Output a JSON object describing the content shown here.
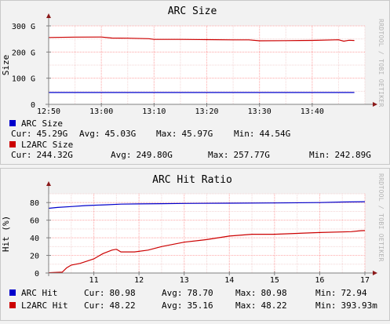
{
  "watermark": "RRDTOOL / TOBI OETIKER",
  "colors": {
    "background": "#f2f2f2",
    "canvas": "#ffffff",
    "grid": "#ffaaaa",
    "minor_grid": "#f3d6d6",
    "axis": "#808080",
    "arrow": "#8b1a1a",
    "blue": "#0000cc",
    "red": "#cc0000"
  },
  "chart_data": [
    {
      "type": "line",
      "title": "ARC Size",
      "ylabel": "Size",
      "xlabel": "",
      "ylim": [
        0,
        300
      ],
      "xlim": [
        "12:50",
        "13:50"
      ],
      "yticks": [
        {
          "v": 0,
          "label": "0"
        },
        {
          "v": 100,
          "label": "100 G"
        },
        {
          "v": 200,
          "label": "200 G"
        },
        {
          "v": 300,
          "label": "300 G"
        }
      ],
      "xticks": [
        {
          "v": "12:50",
          "label": "12:50"
        },
        {
          "v": "13:00",
          "label": "13:00"
        },
        {
          "v": "13:10",
          "label": "13:10"
        },
        {
          "v": "13:20",
          "label": "13:20"
        },
        {
          "v": "13:30",
          "label": "13:30"
        },
        {
          "v": "13:40",
          "label": "13:40"
        }
      ],
      "grid": true,
      "series": [
        {
          "name": "ARC Size",
          "color": "#0000cc",
          "x": [
            "12:50",
            "13:48"
          ],
          "values": [
            45.29,
            45.29
          ]
        },
        {
          "name": "L2ARC Size",
          "color": "#cc0000",
          "x": [
            "12:50",
            "12:55",
            "13:00",
            "13:02",
            "13:05",
            "13:09",
            "13:10",
            "13:15",
            "13:20",
            "13:25",
            "13:28",
            "13:30",
            "13:35",
            "13:40",
            "13:45",
            "13:46",
            "13:47",
            "13:48"
          ],
          "values": [
            255.5,
            257.0,
            257.5,
            253.5,
            253.0,
            251.0,
            248.5,
            248.5,
            247.5,
            246.5,
            246.5,
            242.9,
            243.5,
            244.5,
            247.0,
            241.5,
            245.0,
            244.3
          ]
        }
      ],
      "legend": [
        {
          "name": "ARC Size",
          "color": "#0000cc",
          "stats": [
            {
              "label": "Cur:",
              "value": "45.29G"
            },
            {
              "label": "Avg:",
              "value": "45.03G"
            },
            {
              "label": "Max:",
              "value": "45.97G"
            },
            {
              "label": "Min:",
              "value": "44.54G"
            }
          ]
        },
        {
          "name": "L2ARC Size",
          "color": "#cc0000",
          "stats": [
            {
              "label": "Cur:",
              "value": "244.32G"
            },
            {
              "label": "Avg:",
              "value": "249.80G"
            },
            {
              "label": "Max:",
              "value": "257.77G"
            },
            {
              "label": "Min:",
              "value": "242.89G"
            }
          ]
        }
      ]
    },
    {
      "type": "line",
      "title": "ARC Hit Ratio",
      "ylabel": "Hit (%)",
      "xlabel": "",
      "ylim": [
        0,
        90
      ],
      "xlim": [
        10,
        17
      ],
      "yticks": [
        {
          "v": 0,
          "label": "0"
        },
        {
          "v": 20,
          "label": "20"
        },
        {
          "v": 40,
          "label": "40"
        },
        {
          "v": 60,
          "label": "60"
        },
        {
          "v": 80,
          "label": "80"
        }
      ],
      "xticks": [
        {
          "v": 11,
          "label": "11"
        },
        {
          "v": 12,
          "label": "12"
        },
        {
          "v": 13,
          "label": "13"
        },
        {
          "v": 14,
          "label": "14"
        },
        {
          "v": 15,
          "label": "15"
        },
        {
          "v": 16,
          "label": "16"
        },
        {
          "v": 17,
          "label": "17"
        }
      ],
      "grid": true,
      "series": [
        {
          "name": "ARC Hit",
          "color": "#0000cc",
          "x": [
            10.0,
            10.2,
            10.5,
            10.8,
            11.0,
            11.3,
            11.6,
            12.0,
            12.5,
            13.0,
            14.0,
            15.0,
            16.0,
            16.5,
            17.0
          ],
          "values": [
            73.5,
            74.5,
            75.5,
            76.5,
            77.0,
            77.5,
            78.2,
            78.5,
            78.8,
            79.0,
            79.3,
            79.6,
            80.0,
            80.6,
            80.98
          ]
        },
        {
          "name": "L2ARC Hit",
          "color": "#cc0000",
          "x": [
            10.0,
            10.3,
            10.4,
            10.5,
            10.7,
            11.0,
            11.2,
            11.4,
            11.5,
            11.6,
            11.9,
            12.2,
            12.5,
            13.0,
            13.5,
            14.0,
            14.5,
            15.0,
            15.5,
            16.0,
            16.7,
            16.9,
            17.0
          ],
          "values": [
            0.39,
            1,
            6,
            9,
            11,
            16,
            22,
            26,
            27,
            24,
            24,
            26,
            30,
            35,
            38,
            42,
            44,
            44,
            45,
            46,
            47,
            48,
            48.22
          ]
        }
      ],
      "legend": [
        {
          "name": "ARC Hit",
          "color": "#0000cc",
          "stats": [
            {
              "label": "Cur:",
              "value": "80.98"
            },
            {
              "label": "Avg:",
              "value": "78.70"
            },
            {
              "label": "Max:",
              "value": "80.98"
            },
            {
              "label": "Min:",
              "value": "72.94"
            }
          ]
        },
        {
          "name": "L2ARC Hit",
          "color": "#cc0000",
          "stats": [
            {
              "label": "Cur:",
              "value": "48.22"
            },
            {
              "label": "Avg:",
              "value": "35.16"
            },
            {
              "label": "Max:",
              "value": "48.22"
            },
            {
              "label": "Min:",
              "value": "393.93m"
            }
          ]
        }
      ]
    }
  ]
}
